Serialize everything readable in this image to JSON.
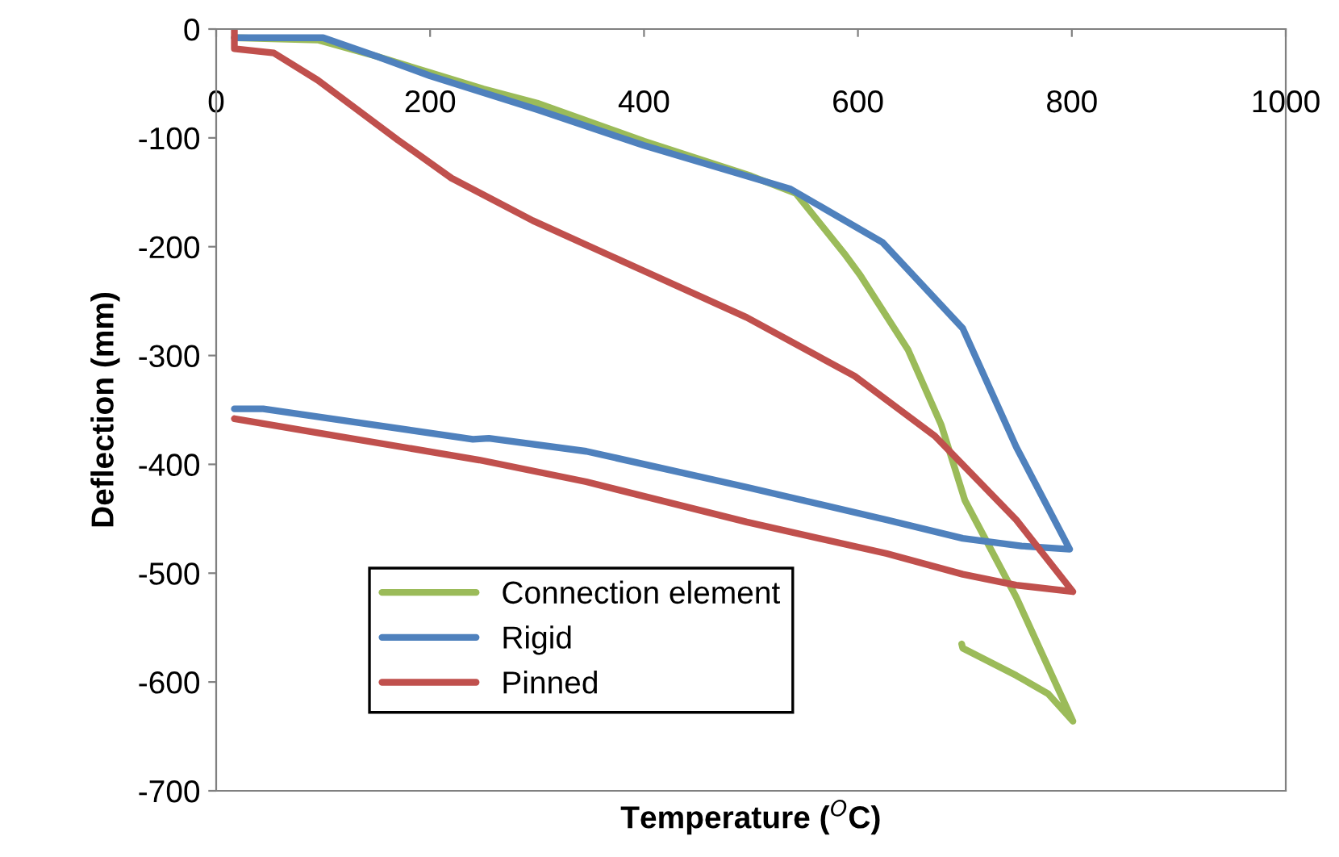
{
  "chart_data": {
    "type": "line",
    "xlabel": "Temperature ($^{O}$C)",
    "ylabel": "Deflection (mm)",
    "xlim": [
      0,
      1000
    ],
    "xticks": [
      0,
      200,
      400,
      600,
      800,
      1000
    ],
    "ylim": [
      -700,
      0
    ],
    "yticks": [
      -700,
      -600,
      -500,
      -400,
      -300,
      -200,
      -100,
      0
    ],
    "grid": false,
    "legend": "bottom left",
    "marker": "none",
    "line_style": "solid",
    "series": [
      {
        "name": "Connection element",
        "color": "#9bbb59",
        "x": [
          17,
          95,
          150,
          200,
          250,
          300,
          400,
          500,
          542,
          587,
          602,
          647,
          678,
          700,
          748,
          801,
          778,
          748,
          698,
          697
        ],
        "values": [
          -8,
          -10,
          -25,
          -40,
          -55,
          -68,
          -103,
          -135,
          -151,
          -206,
          -226,
          -295,
          -364,
          -433,
          -522,
          -636,
          -611,
          -594,
          -569,
          -565
        ]
      },
      {
        "name": "Rigid",
        "color": "#4f81bd",
        "x": [
          17,
          100,
          150,
          200,
          300,
          400,
          537,
          623,
          698,
          748,
          798,
          753,
          698,
          627,
          496,
          346,
          255,
          240,
          44,
          17
        ],
        "values": [
          -8,
          -8,
          -25,
          -43,
          -74,
          -107,
          -147,
          -196,
          -275,
          -384,
          -478,
          -475,
          -468,
          -451,
          -421,
          -388,
          -376,
          -377,
          -349,
          -349
        ]
      },
      {
        "name": "Pinned",
        "color": "#c0504d",
        "x": [
          17,
          17,
          54,
          95,
          170,
          220,
          296,
          397,
          496,
          597,
          672,
          748,
          801,
          748,
          698,
          627,
          496,
          346,
          246,
          95,
          17
        ],
        "values": [
          0,
          -18,
          -22,
          -47,
          -102,
          -137,
          -176,
          -221,
          -265,
          -319,
          -374,
          -451,
          -517,
          -511,
          -501,
          -482,
          -453,
          -416,
          -396,
          -371,
          -358
        ]
      }
    ]
  }
}
